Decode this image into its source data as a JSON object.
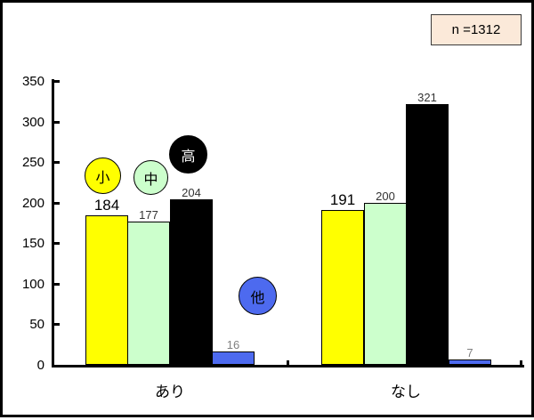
{
  "annotation": {
    "label": "n =1312"
  },
  "chart_data": {
    "type": "bar",
    "title": "",
    "xlabel": "",
    "ylabel": "",
    "categories": [
      "あり",
      "なし"
    ],
    "series": [
      {
        "name": "小",
        "values": [
          184,
          191
        ],
        "color": "#ffff00",
        "label_color": "#000000",
        "label_size": 17
      },
      {
        "name": "中",
        "values": [
          177,
          200
        ],
        "color": "#ccffcc",
        "label_color": "#333333",
        "label_size": 13
      },
      {
        "name": "高",
        "values": [
          204,
          321
        ],
        "color": "#000000",
        "label_color": "#333333",
        "label_size": 13
      },
      {
        "name": "他",
        "values": [
          16,
          7
        ],
        "color": "#4d6aef",
        "label_color": "#808080",
        "label_size": 13
      }
    ],
    "ylim": [
      0,
      350
    ],
    "yticks": [
      0,
      50,
      100,
      150,
      200,
      250,
      300,
      350
    ],
    "grid": false,
    "legend_position": "floating-circles-over-bars",
    "bar_value_labels": true
  }
}
